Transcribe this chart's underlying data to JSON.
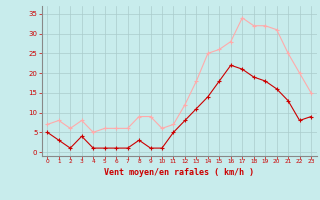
{
  "x": [
    0,
    1,
    2,
    3,
    4,
    5,
    6,
    7,
    8,
    9,
    10,
    11,
    12,
    13,
    14,
    15,
    16,
    17,
    18,
    19,
    20,
    21,
    22,
    23
  ],
  "y_moyen": [
    5,
    3,
    1,
    4,
    1,
    1,
    1,
    1,
    3,
    1,
    1,
    5,
    8,
    11,
    14,
    18,
    22,
    21,
    19,
    18,
    16,
    13,
    8,
    9
  ],
  "y_rafales": [
    7,
    8,
    6,
    8,
    5,
    6,
    6,
    6,
    9,
    9,
    6,
    7,
    12,
    18,
    25,
    26,
    28,
    34,
    32,
    32,
    31,
    25,
    20,
    15
  ],
  "color_moyen": "#cc0000",
  "color_rafales": "#ffaaaa",
  "bg_color": "#c8ecec",
  "grid_color": "#aacccc",
  "axis_color": "#888888",
  "xlabel": "Vent moyen/en rafales ( km/h )",
  "xlabel_color": "#cc0000",
  "tick_color": "#cc0000",
  "ylim": [
    -1,
    37
  ],
  "yticks": [
    0,
    5,
    10,
    15,
    20,
    25,
    30,
    35
  ],
  "xlim": [
    -0.5,
    23.5
  ],
  "xticks": [
    0,
    1,
    2,
    3,
    4,
    5,
    6,
    7,
    8,
    9,
    10,
    11,
    12,
    13,
    14,
    15,
    16,
    17,
    18,
    19,
    20,
    21,
    22,
    23
  ]
}
